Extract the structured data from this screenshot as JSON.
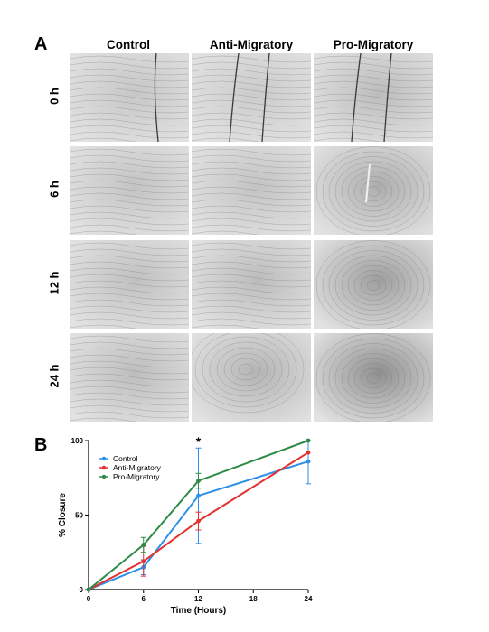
{
  "panels": {
    "a": "A",
    "b": "B"
  },
  "columns": [
    "Control",
    "Anti-Migratory",
    "Pro-Migratory"
  ],
  "rows": [
    "0 h",
    "6 h",
    "12 h",
    "24 h"
  ],
  "colors": {
    "control": "#2c8fe8",
    "anti_migratory": "#e4302f",
    "pro_migratory": "#2e8b47"
  },
  "chart_data": {
    "type": "line",
    "x": [
      0,
      6,
      12,
      24
    ],
    "xticks": [
      0,
      6,
      12,
      18,
      24
    ],
    "yticks": [
      0,
      50,
      100
    ],
    "xlim": [
      0,
      24
    ],
    "ylim": [
      0,
      100
    ],
    "xlabel": "Time (Hours)",
    "ylabel": "% Closure",
    "legend_position": "top-left",
    "annotation": {
      "text": "*",
      "x": 12
    },
    "series": [
      {
        "name": "Control",
        "color": "#2c8fe8",
        "values": [
          0,
          15,
          63,
          86
        ],
        "err": [
          0,
          5,
          32,
          15
        ]
      },
      {
        "name": "Anti-Migratory",
        "color": "#e4302f",
        "values": [
          0,
          19,
          46,
          92
        ],
        "err": [
          0,
          10,
          6,
          0
        ]
      },
      {
        "name": "Pro-Migratory",
        "color": "#2e8b47",
        "values": [
          0,
          30,
          73,
          100
        ],
        "err": [
          0,
          5,
          5,
          0
        ]
      }
    ]
  }
}
